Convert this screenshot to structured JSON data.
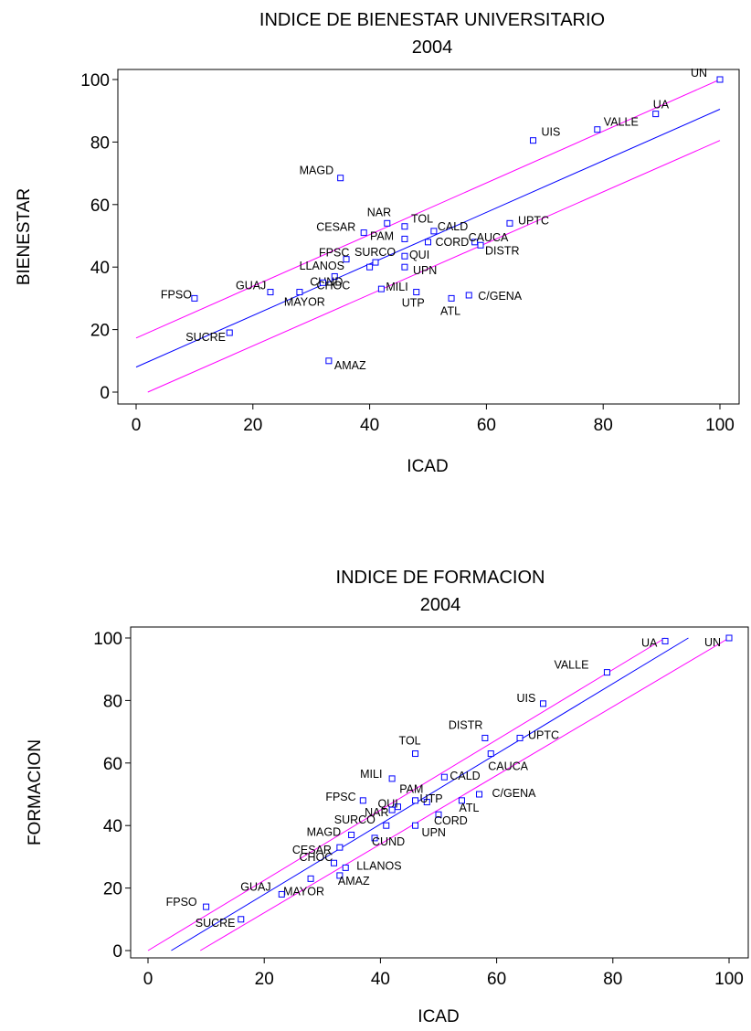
{
  "chart_data": [
    {
      "type": "scatter",
      "title": "INDICE DE BIENESTAR UNIVERSITARIO",
      "subtitle": "2004",
      "xlabel": "ICAD",
      "ylabel": "BIENESTAR",
      "xlim": [
        0,
        100
      ],
      "ylim": [
        0,
        100
      ],
      "xticks": [
        "0",
        "20",
        "40",
        "60",
        "80",
        "100"
      ],
      "yticks": [
        "0",
        "20",
        "40",
        "60",
        "80",
        "100"
      ],
      "grid": false,
      "colors": {
        "points": "#0000ff",
        "fit": "#0000ff",
        "band": "#ff00ff"
      },
      "fit_line": [
        [
          0,
          8
        ],
        [
          100,
          90.5
        ]
      ],
      "band_upper": [
        [
          0,
          17.3
        ],
        [
          100,
          100
        ]
      ],
      "band_lower": [
        [
          2,
          0
        ],
        [
          100,
          80.5
        ]
      ],
      "points": [
        {
          "label": "UN",
          "x": 100,
          "y": 100
        },
        {
          "label": "UA",
          "x": 89,
          "y": 89
        },
        {
          "label": "UIS",
          "x": 68,
          "y": 80.5
        },
        {
          "label": "VALLE",
          "x": 79,
          "y": 84
        },
        {
          "label": "MAGD",
          "x": 35,
          "y": 68.5
        },
        {
          "label": "NAR",
          "x": 43,
          "y": 54
        },
        {
          "label": "TOL",
          "x": 46,
          "y": 53
        },
        {
          "label": "CESAR",
          "x": 39,
          "y": 51
        },
        {
          "label": "CALD",
          "x": 51,
          "y": 51.5
        },
        {
          "label": "UPTC",
          "x": 64,
          "y": 54
        },
        {
          "label": "PAM",
          "x": 46,
          "y": 49
        },
        {
          "label": "CAUCA",
          "x": 58,
          "y": 48
        },
        {
          "label": "CORD",
          "x": 50,
          "y": 48
        },
        {
          "label": "QUI",
          "x": 46,
          "y": 43.5
        },
        {
          "label": "DISTR",
          "x": 59,
          "y": 47
        },
        {
          "label": "FPSC",
          "x": 36,
          "y": 42.5
        },
        {
          "label": "SURCO",
          "x": 41,
          "y": 41.5
        },
        {
          "label": "LLANOS",
          "x": 40,
          "y": 40
        },
        {
          "label": "UPN",
          "x": 46,
          "y": 40
        },
        {
          "label": "CUND",
          "x": 34,
          "y": 37
        },
        {
          "label": "GUAJ",
          "x": 23,
          "y": 32
        },
        {
          "label": "FPSO",
          "x": 10,
          "y": 30
        },
        {
          "label": "MAYOR",
          "x": 28,
          "y": 32
        },
        {
          "label": "CHOC",
          "x": 32,
          "y": 35
        },
        {
          "label": "MILI",
          "x": 42,
          "y": 33
        },
        {
          "label": "UTP",
          "x": 48,
          "y": 32
        },
        {
          "label": "ATL",
          "x": 54,
          "y": 30
        },
        {
          "label": "C/GENA",
          "x": 57,
          "y": 31
        },
        {
          "label": "SUCRE",
          "x": 16,
          "y": 19
        },
        {
          "label": "AMAZ",
          "x": 33,
          "y": 10
        }
      ]
    },
    {
      "type": "scatter",
      "title": "INDICE DE FORMACION",
      "subtitle": "2004",
      "xlabel": "ICAD",
      "ylabel": "FORMACION",
      "xlim": [
        0,
        100
      ],
      "ylim": [
        0,
        100
      ],
      "xticks": [
        "0",
        "20",
        "40",
        "60",
        "80",
        "100"
      ],
      "yticks": [
        "0",
        "20",
        "40",
        "60",
        "80",
        "100"
      ],
      "grid": false,
      "colors": {
        "points": "#0000ff",
        "fit": "#0000ff",
        "band": "#ff00ff"
      },
      "fit_line": [
        [
          4,
          0
        ],
        [
          93,
          100
        ]
      ],
      "band_upper": [
        [
          0,
          0
        ],
        [
          89,
          100
        ]
      ],
      "band_lower": [
        [
          9,
          0
        ],
        [
          100,
          100
        ]
      ],
      "points": [
        {
          "label": "UN",
          "x": 100,
          "y": 100
        },
        {
          "label": "UA",
          "x": 89,
          "y": 99
        },
        {
          "label": "VALLE",
          "x": 79,
          "y": 89
        },
        {
          "label": "UIS",
          "x": 68,
          "y": 79
        },
        {
          "label": "DISTR",
          "x": 58,
          "y": 68
        },
        {
          "label": "UPTC",
          "x": 64,
          "y": 68
        },
        {
          "label": "TOL",
          "x": 46,
          "y": 63
        },
        {
          "label": "CAUCA",
          "x": 59,
          "y": 63
        },
        {
          "label": "MILI",
          "x": 42,
          "y": 55
        },
        {
          "label": "CALD",
          "x": 51,
          "y": 55.5
        },
        {
          "label": "PAM",
          "x": 48,
          "y": 47.5
        },
        {
          "label": "FPSC",
          "x": 37,
          "y": 48
        },
        {
          "label": "QUI",
          "x": 43,
          "y": 46
        },
        {
          "label": "UTP",
          "x": 46,
          "y": 48
        },
        {
          "label": "C/GENA",
          "x": 57,
          "y": 50
        },
        {
          "label": "ATL",
          "x": 54,
          "y": 48
        },
        {
          "label": "NAR",
          "x": 42,
          "y": 45
        },
        {
          "label": "CORD",
          "x": 50,
          "y": 43.5
        },
        {
          "label": "SURCO",
          "x": 41,
          "y": 40
        },
        {
          "label": "UPN",
          "x": 46,
          "y": 40
        },
        {
          "label": "MAGD",
          "x": 35,
          "y": 37
        },
        {
          "label": "CUND",
          "x": 39,
          "y": 36
        },
        {
          "label": "CESAR",
          "x": 33,
          "y": 33
        },
        {
          "label": "CHOC",
          "x": 32,
          "y": 28
        },
        {
          "label": "LLANOS",
          "x": 34,
          "y": 26.5
        },
        {
          "label": "AMAZ",
          "x": 33,
          "y": 24
        },
        {
          "label": "MAYOR",
          "x": 28,
          "y": 23
        },
        {
          "label": "GUAJ",
          "x": 23,
          "y": 18
        },
        {
          "label": "FPSO",
          "x": 10,
          "y": 14
        },
        {
          "label": "SUCRE",
          "x": 16,
          "y": 10
        }
      ]
    }
  ]
}
